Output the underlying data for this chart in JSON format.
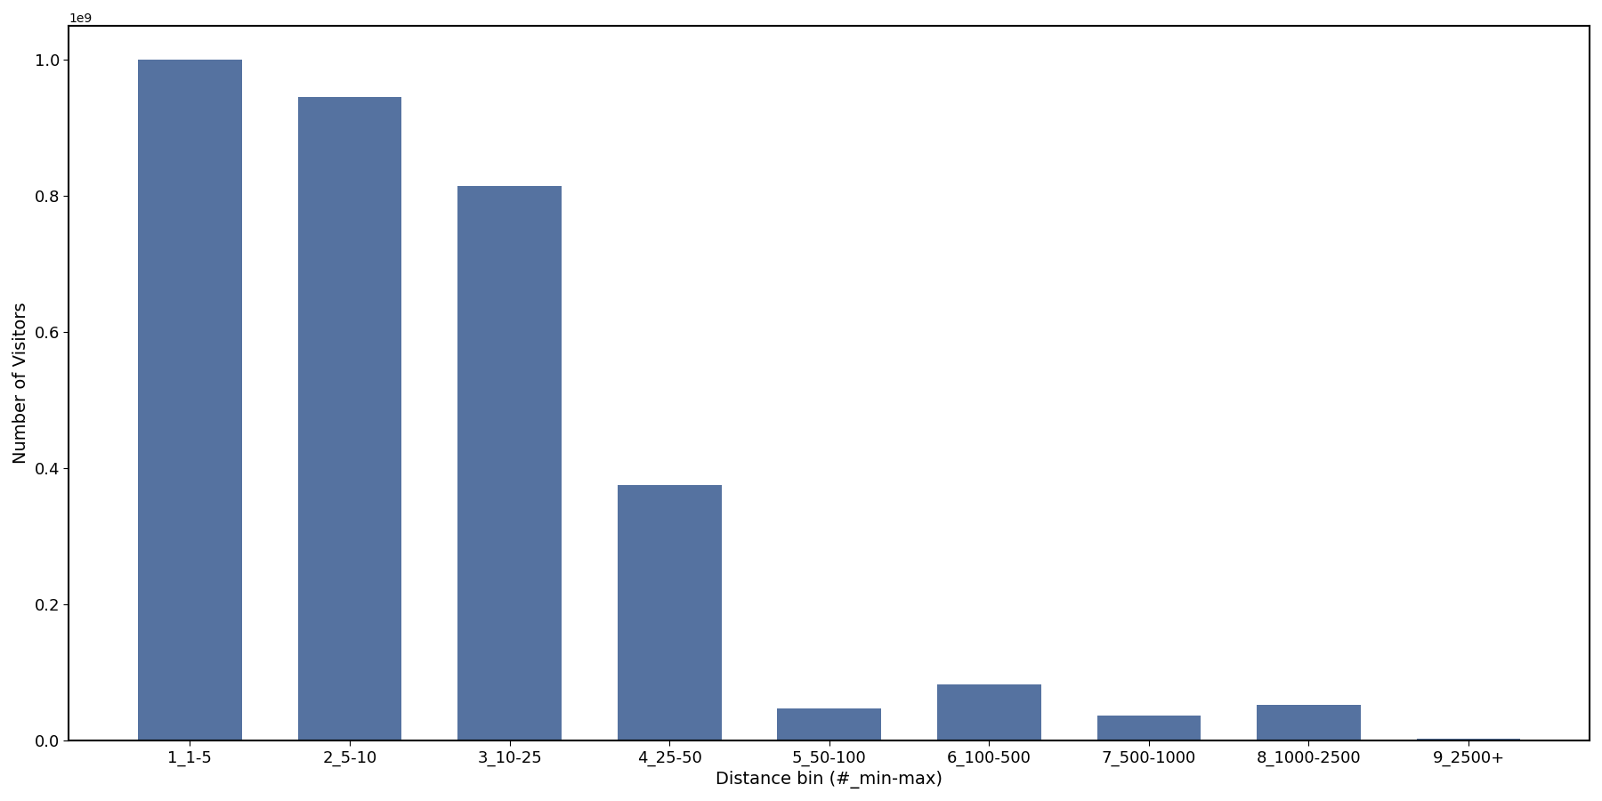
{
  "categories": [
    "1_1-5",
    "2_5-10",
    "3_10-25",
    "4_25-50",
    "5_50-100",
    "6_100-500",
    "7_500-1000",
    "8_1000-2500",
    "9_2500+"
  ],
  "values": [
    1000000000,
    945000000,
    815000000,
    375000000,
    47000000,
    82000000,
    37000000,
    52000000,
    3000000
  ],
  "bar_color": "#5572a0",
  "xlabel": "Distance bin (#_min-max)",
  "ylabel": "Number of Visitors",
  "background_color": "#ffffff",
  "ylim": [
    0,
    1050000000
  ],
  "bar_width": 0.65,
  "figsize": [
    18.0,
    9.0
  ],
  "dpi": 100
}
